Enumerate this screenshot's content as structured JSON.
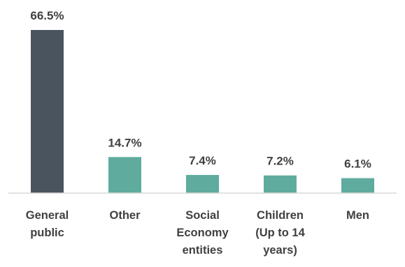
{
  "chart_data": {
    "type": "bar",
    "categories": [
      [
        "General",
        "public"
      ],
      [
        "Other"
      ],
      [
        "Social",
        "Economy",
        "entities"
      ],
      [
        "Children",
        "(Up to 14",
        "years)"
      ],
      [
        "Men"
      ]
    ],
    "values": [
      66.5,
      14.7,
      7.4,
      7.2,
      6.1
    ],
    "value_labels": [
      "66.5%",
      "14.7%",
      "7.4%",
      "7.2%",
      "6.1%"
    ],
    "unit": "%",
    "ylim": [
      0,
      66.5
    ],
    "grid": false,
    "legend": "none",
    "bar_colors": [
      "#4a545e",
      "#5fac9e",
      "#5fac9e",
      "#5fac9e",
      "#5fac9e"
    ],
    "title": "",
    "xlabel": "",
    "ylabel": ""
  }
}
